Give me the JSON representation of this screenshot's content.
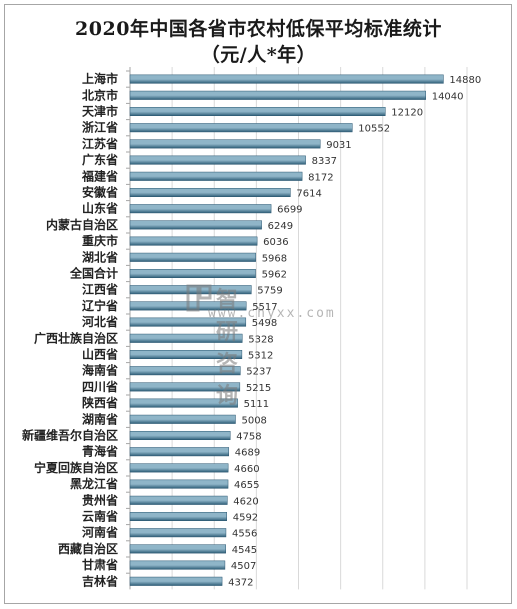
{
  "title_line1": "2020年中国各省市农村低保平均标准统计",
  "title_line2": "（元/人*年）",
  "watermark": {
    "text": "智研咨询",
    "url": "www.chyxx.com"
  },
  "colors": {
    "bar_light": "#8fb5c8",
    "bar_dark": "#2f5f78",
    "grid": "#d9d9d9",
    "axis": "#a6a6a6",
    "label": "#333333"
  },
  "chart_data": {
    "type": "bar",
    "orientation": "horizontal",
    "categories": [
      "上海市",
      "北京市",
      "天津市",
      "浙江省",
      "江苏省",
      "广东省",
      "福建省",
      "安徽省",
      "山东省",
      "内蒙古自治区",
      "重庆市",
      "湖北省",
      "全国合计",
      "江西省",
      "辽宁省",
      "河北省",
      "广西壮族自治区",
      "山西省",
      "海南省",
      "四川省",
      "陕西省",
      "湖南省",
      "新疆维吾尔自治区",
      "青海省",
      "宁夏回族自治区",
      "黑龙江省",
      "贵州省",
      "云南省",
      "河南省",
      "西藏自治区",
      "甘肃省",
      "吉林省"
    ],
    "values": [
      14880,
      14040,
      12120,
      10552,
      9031,
      8337,
      8172,
      7614,
      6699,
      6249,
      6036,
      5968,
      5962,
      5759,
      5517,
      5498,
      5328,
      5312,
      5237,
      5215,
      5111,
      5008,
      4758,
      4689,
      4660,
      4655,
      4620,
      4592,
      4556,
      4545,
      4507,
      4372
    ],
    "xlim": [
      0,
      16000
    ],
    "grid": true,
    "data_labels": true
  }
}
